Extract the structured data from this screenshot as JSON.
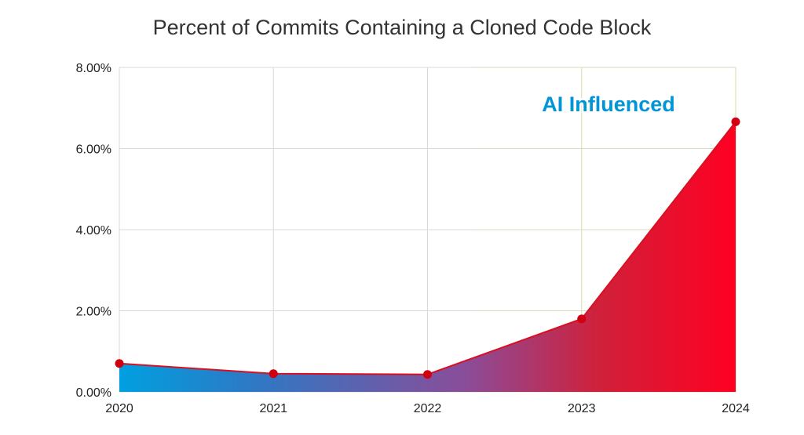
{
  "chart_data": {
    "type": "area",
    "title": "Percent of Commits Containing a Cloned Code Block",
    "categories": [
      "2020",
      "2021",
      "2022",
      "2023",
      "2024"
    ],
    "series": [
      {
        "values": [
          0.7,
          0.45,
          0.43,
          1.8,
          6.66
        ]
      }
    ],
    "ylim": [
      0,
      8
    ],
    "yticks": [
      "0.00%",
      "2.00%",
      "4.00%",
      "6.00%",
      "8.00%"
    ],
    "ytick_values": [
      0,
      2,
      4,
      6,
      8
    ],
    "annotation": "AI Influenced",
    "grid": true,
    "colors": {
      "start": "#00a0e0",
      "end": "#ff0022",
      "line": "#d81020",
      "marker": "#d00010",
      "grid": "#d8d8d8",
      "ai_grid": "#d8dca8",
      "annotation": "#0095d6"
    }
  }
}
